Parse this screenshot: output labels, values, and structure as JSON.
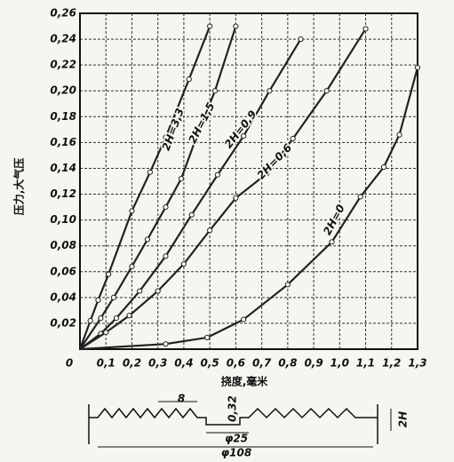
{
  "chart_data": {
    "type": "line",
    "ylabel": "压力,大气压",
    "xlabel": "挠度,毫米",
    "xlim": [
      0,
      1.3
    ],
    "ylim": [
      0,
      0.26
    ],
    "xticks": [
      0,
      {
        "value": 0.1,
        "label": "0,1"
      },
      {
        "value": 0.2,
        "label": "0,2"
      },
      {
        "value": 0.3,
        "label": "0,3"
      },
      {
        "value": 0.4,
        "label": "0,4"
      },
      {
        "value": 0.5,
        "label": "0,5"
      },
      {
        "value": 0.6,
        "label": "0,6"
      },
      {
        "value": 0.7,
        "label": "0,7"
      },
      {
        "value": 0.8,
        "label": "0,8"
      },
      {
        "value": 0.9,
        "label": "0,9"
      },
      {
        "value": 1.0,
        "label": "1,0"
      },
      {
        "value": 1.1,
        "label": "1,1"
      },
      {
        "value": 1.2,
        "label": "1,2"
      },
      {
        "value": 1.3,
        "label": "1,3"
      }
    ],
    "yticks": [
      {
        "value": 0.02,
        "label": "0,02"
      },
      {
        "value": 0.04,
        "label": "0,04"
      },
      {
        "value": 0.06,
        "label": "0,06"
      },
      {
        "value": 0.08,
        "label": "0,08"
      },
      {
        "value": 0.1,
        "label": "0,10"
      },
      {
        "value": 0.12,
        "label": "0,12"
      },
      {
        "value": 0.14,
        "label": "0,14"
      },
      {
        "value": 0.16,
        "label": "0,16"
      },
      {
        "value": 0.18,
        "label": "0,18"
      },
      {
        "value": 0.2,
        "label": "0,20"
      },
      {
        "value": 0.22,
        "label": "0,22"
      },
      {
        "value": 0.24,
        "label": "0,24"
      },
      {
        "value": 0.26,
        "label": "0,26"
      }
    ],
    "grid": true,
    "color": "#222222",
    "series": [
      {
        "name": "2H=3,3",
        "x": [
          0,
          0.04,
          0.07,
          0.11,
          0.2,
          0.27,
          0.33,
          0.42,
          0.5
        ],
        "values": [
          0,
          0.022,
          0.038,
          0.058,
          0.107,
          0.137,
          0.164,
          0.209,
          0.25
        ]
      },
      {
        "name": "2H=1,5",
        "x": [
          0,
          0.08,
          0.13,
          0.2,
          0.26,
          0.33,
          0.39,
          0.45,
          0.52,
          0.6
        ],
        "values": [
          0,
          0.024,
          0.04,
          0.064,
          0.085,
          0.11,
          0.132,
          0.165,
          0.2,
          0.25
        ]
      },
      {
        "name": "2H=0,9",
        "x": [
          0,
          0.08,
          0.14,
          0.23,
          0.33,
          0.43,
          0.53,
          0.63,
          0.73,
          0.85
        ],
        "values": [
          0,
          0.012,
          0.024,
          0.045,
          0.072,
          0.104,
          0.135,
          0.165,
          0.2,
          0.24
        ]
      },
      {
        "name": "2H=0,6",
        "x": [
          0,
          0.1,
          0.19,
          0.3,
          0.4,
          0.5,
          0.6,
          0.72,
          0.82,
          0.95,
          1.1
        ],
        "values": [
          0,
          0.013,
          0.026,
          0.045,
          0.066,
          0.092,
          0.117,
          0.136,
          0.163,
          0.2,
          0.248
        ]
      },
      {
        "name": "2H=0",
        "x": [
          0,
          0.33,
          0.49,
          0.63,
          0.8,
          0.97,
          1.08,
          1.17,
          1.23,
          1.3
        ],
        "values": [
          0,
          0.004,
          0.009,
          0.023,
          0.05,
          0.083,
          0.118,
          0.141,
          0.166,
          0.218
        ]
      }
    ]
  },
  "diagram": {
    "pitch": "8",
    "thickness": "0,32",
    "inner_diameter": "φ25",
    "outer_diameter": "φ108",
    "height": "2H"
  }
}
